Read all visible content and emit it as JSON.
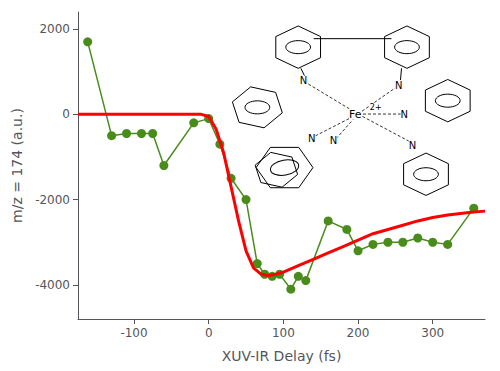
{
  "chart_data": {
    "type": "line",
    "xlabel": "XUV-IR Delay (fs)",
    "ylabel": "m/z = 174 (a.u.)",
    "xlim": [
      -175,
      370
    ],
    "ylim": [
      -4800,
      2400
    ],
    "xticks": [
      -100,
      0,
      100,
      200,
      300
    ],
    "yticks": [
      -4000,
      -2000,
      0,
      2000
    ],
    "grid": false,
    "series": [
      {
        "type": "line",
        "marker": "circle",
        "color": "#4a8c1c",
        "x": [
          -162,
          -130,
          -110,
          -90,
          -75,
          -60,
          -20,
          0,
          15,
          30,
          50,
          65,
          75,
          85,
          95,
          110,
          120,
          130,
          160,
          185,
          200,
          220,
          240,
          260,
          280,
          300,
          320,
          355
        ],
        "values": [
          1700,
          -500,
          -450,
          -450,
          -450,
          -1200,
          -200,
          -100,
          -700,
          -1500,
          -2000,
          -3500,
          -3750,
          -3800,
          -3750,
          -4100,
          -3800,
          -3900,
          -2500,
          -2700,
          -3200,
          -3050,
          -3000,
          -3000,
          -2900,
          -3000,
          -3050,
          -2200
        ]
      },
      {
        "type": "line",
        "color": "#ff0000",
        "x": [
          -175,
          -150,
          -125,
          -100,
          -75,
          -50,
          -25,
          -10,
          0,
          10,
          20,
          30,
          40,
          50,
          60,
          70,
          80,
          90,
          100,
          120,
          140,
          160,
          180,
          200,
          220,
          240,
          260,
          280,
          300,
          320,
          340,
          355,
          370
        ],
        "values": [
          0,
          0,
          0,
          0,
          0,
          0,
          0,
          0,
          -50,
          -350,
          -900,
          -1700,
          -2500,
          -3200,
          -3600,
          -3750,
          -3780,
          -3750,
          -3700,
          -3550,
          -3400,
          -3250,
          -3100,
          -2950,
          -2800,
          -2700,
          -2600,
          -2500,
          -2420,
          -2360,
          -2320,
          -2290,
          -2270
        ]
      }
    ],
    "annotations": [
      "Fe",
      "2+",
      "N",
      "N",
      "N",
      "N",
      "N",
      "N"
    ]
  }
}
